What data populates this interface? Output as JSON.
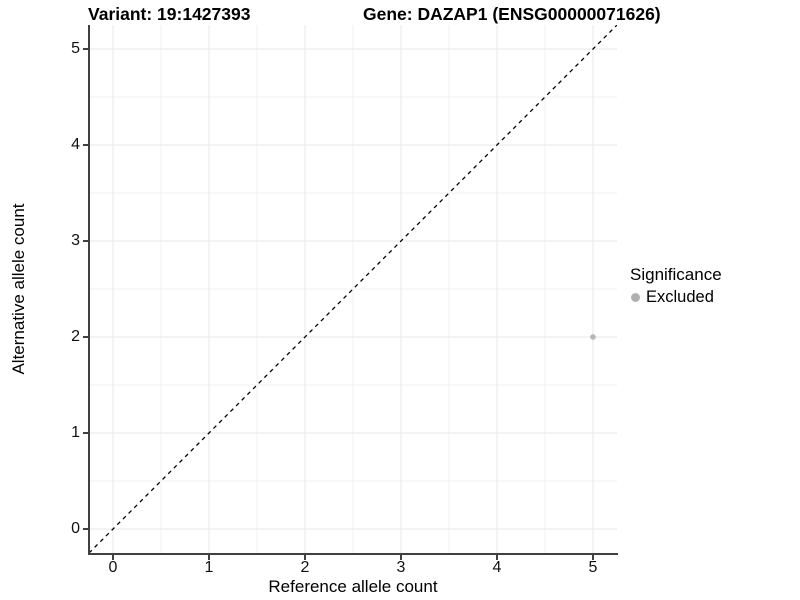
{
  "chart_data": {
    "type": "scatter",
    "titles": {
      "left": "Variant: 19:1427393",
      "right": "Gene: DAZAP1 (ENSG00000071626)"
    },
    "xlabel": "Reference allele count",
    "ylabel": "Alternative allele count",
    "x_ticks": [
      0,
      1,
      2,
      3,
      4,
      5
    ],
    "y_ticks": [
      0,
      1,
      2,
      3,
      4,
      5
    ],
    "xlim": [
      -0.25,
      5.25
    ],
    "ylim": [
      -0.25,
      5.25
    ],
    "grid": {
      "major_step": 1,
      "minor_step": 0.5,
      "major_color": "#e7e7e7",
      "minor_color": "#f2f2f2"
    },
    "identity_line": {
      "equation": "y = x",
      "style": "dashed",
      "color": "#000000"
    },
    "legend": {
      "title": "Significance",
      "position": "right",
      "entries": [
        {
          "label": "Excluded",
          "color": "#b0b0b0"
        }
      ]
    },
    "series": [
      {
        "name": "Excluded",
        "color": "#b5b5b5",
        "point_radius_px": 2.8,
        "points": [
          {
            "x": 5,
            "y": 2
          }
        ]
      }
    ]
  }
}
